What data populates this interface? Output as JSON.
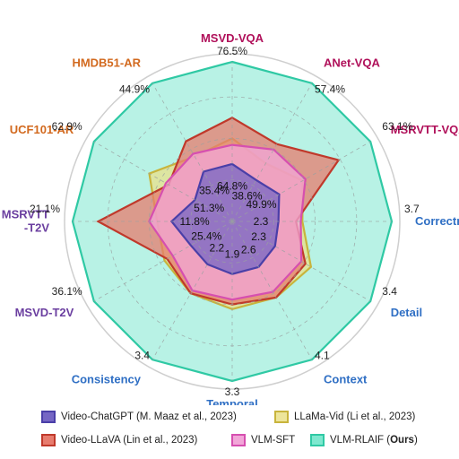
{
  "chart_data": {
    "type": "radar",
    "axes": [
      {
        "name": "MSVD-VQA",
        "color": "#b0105a",
        "top_value": "76.5%"
      },
      {
        "name": "ANet-VQA",
        "color": "#b0105a",
        "top_value": "57.4%"
      },
      {
        "name": "MSRVTT-VQA",
        "color": "#b0105a",
        "top_value": "63.1%"
      },
      {
        "name": "Correctness",
        "color": "#2f6fc4",
        "top_value": "3.7"
      },
      {
        "name": "Detail",
        "color": "#2f6fc4",
        "top_value": "3.4"
      },
      {
        "name": "Context",
        "color": "#2f6fc4",
        "top_value": "4.1"
      },
      {
        "name": "Temporal",
        "color": "#2f6fc4",
        "top_value": "3.3"
      },
      {
        "name": "Consistency",
        "color": "#2f6fc4",
        "top_value": "3.4"
      },
      {
        "name": "MSVD-T2V",
        "color": "#6b3fa0",
        "top_value": "36.1%"
      },
      {
        "name": "MSRVTT\n-T2V",
        "color": "#6b3fa0",
        "top_value": "21.1%"
      },
      {
        "name": "UCF101-AR",
        "color": "#d2691e",
        "top_value": "62.9%"
      },
      {
        "name": "HMDB51-AR",
        "color": "#d2691e",
        "top_value": "44.9%"
      }
    ],
    "inner_labels": [
      {
        "axis": 0,
        "text": "64.8%"
      },
      {
        "axis": 1,
        "text": "38.6%"
      },
      {
        "axis": 2,
        "text": "49.9%"
      },
      {
        "axis": 3,
        "text": "2.3"
      },
      {
        "axis": 4,
        "text": "2.3"
      },
      {
        "axis": 5,
        "text": "2.6"
      },
      {
        "axis": 6,
        "text": "1.9"
      },
      {
        "axis": 7,
        "text": "2.2"
      },
      {
        "axis": 8,
        "text": "25.4%"
      },
      {
        "axis": 9,
        "text": "11.8%"
      },
      {
        "axis": 10,
        "text": "51.3%"
      },
      {
        "axis": 11,
        "text": "35.4%"
      }
    ],
    "series": [
      {
        "name": "VLM-RLAIF (Ours)",
        "fill": "#7ee8cf",
        "stroke": "#2fc9a4",
        "values": [
          1.0,
          1.0,
          1.0,
          1.0,
          1.0,
          1.0,
          1.0,
          1.0,
          1.0,
          1.0,
          1.0,
          1.0
        ]
      },
      {
        "name": "LLaMa-Vid (Li et al., 2023)",
        "fill": "#e9e08a",
        "stroke": "#c8b43c",
        "values": [
          0.52,
          0.42,
          0.51,
          0.44,
          0.57,
          0.55,
          0.55,
          0.52,
          0.49,
          0.47,
          0.6,
          0.47
        ]
      },
      {
        "name": "Video-LLaVA (Lin et al., 2023)",
        "fill": "#e77c6e",
        "stroke": "#c0392b",
        "values": [
          0.65,
          0.56,
          0.77,
          0.4,
          0.53,
          0.55,
          0.52,
          0.52,
          0.47,
          0.84,
          0.46,
          0.58
        ]
      },
      {
        "name": "VLM-SFT",
        "fill": "#f2a6d8",
        "stroke": "#d64fb0",
        "values": [
          0.48,
          0.52,
          0.53,
          0.43,
          0.5,
          0.51,
          0.49,
          0.5,
          0.43,
          0.52,
          0.48,
          0.49
        ]
      },
      {
        "name": "Video-ChatGPT (M. Maaz et al., 2023)",
        "fill": "#7566c4",
        "stroke": "#4a3fa8",
        "values": [
          0.36,
          0.3,
          0.34,
          0.29,
          0.31,
          0.33,
          0.33,
          0.31,
          0.3,
          0.38,
          0.27,
          0.36
        ]
      }
    ],
    "legend": [
      {
        "series": "Video-ChatGPT (M. Maaz et al., 2023)"
      },
      {
        "series": "LLaMa-Vid (Li et al., 2023)"
      },
      {
        "series": "Video-LLaVA (Lin et al., 2023)"
      },
      {
        "series": "VLM-SFT"
      },
      {
        "series": "VLM-RLAIF (Ours)"
      }
    ]
  },
  "legend_text": {
    "chatgpt": "Video-ChatGPT (M. Maaz et al., 2023)",
    "llamavid": "LLaMa-Vid (Li et al., 2023)",
    "videollava": "Video-LLaVA (Lin et al., 2023)",
    "vlmsft": "VLM-SFT",
    "rlaif_prefix": "VLM-RLAIF (",
    "rlaif_bold": "Ours",
    "rlaif_suffix": ")"
  }
}
